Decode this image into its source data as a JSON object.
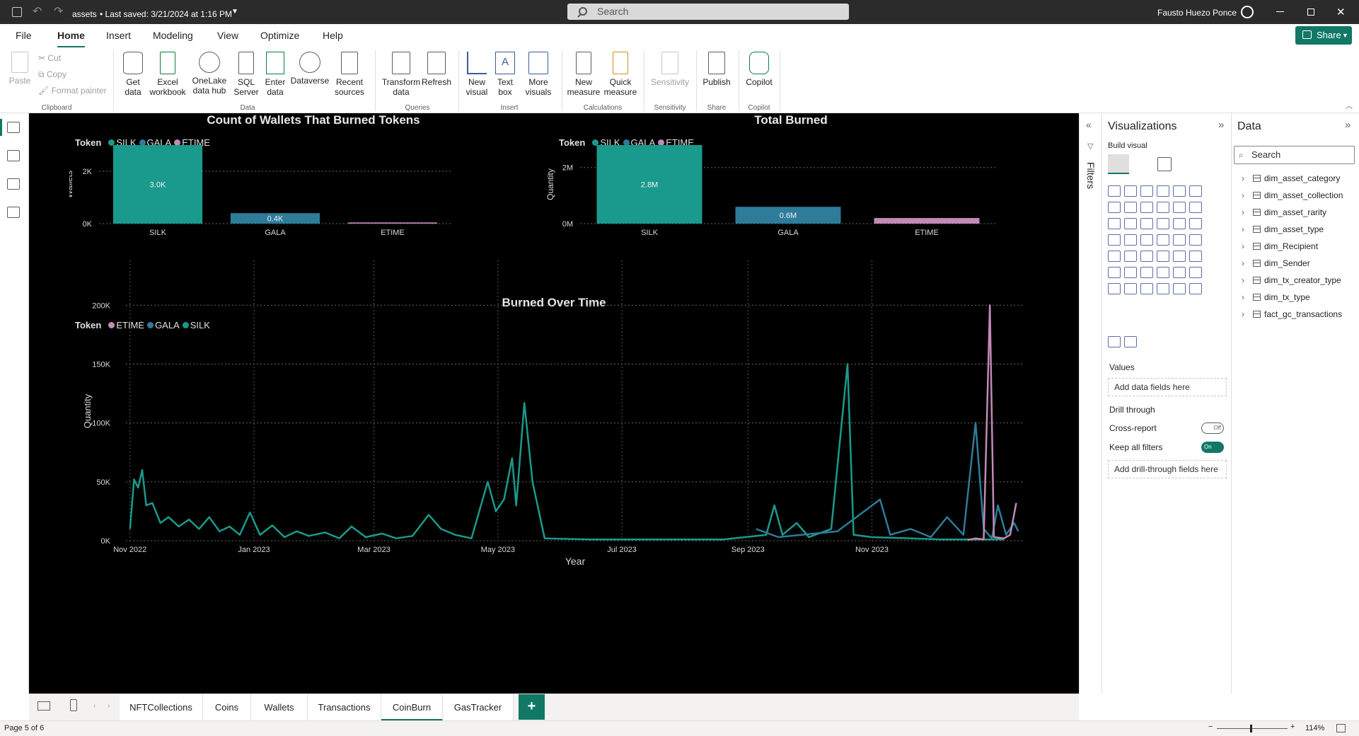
{
  "titlebar": {
    "file_name": "assets",
    "saved": "• Last saved: 3/21/2024 at 1:16 PM",
    "search_placeholder": "Search",
    "user": "Fausto Huezo Ponce"
  },
  "menu": [
    "File",
    "Home",
    "Insert",
    "Modeling",
    "View",
    "Optimize",
    "Help"
  ],
  "share_label": "Share",
  "ribbon": {
    "clipboard": {
      "paste": "Paste",
      "cut": "Cut",
      "copy": "Copy",
      "format_painter": "Format painter",
      "group": "Clipboard"
    },
    "data": {
      "get_data": "Get\ndata",
      "excel": "Excel\nworkbook",
      "onelake": "OneLake\ndata hub",
      "sql": "SQL\nServer",
      "enter": "Enter\ndata",
      "dataverse": "Dataverse",
      "recent": "Recent\nsources",
      "group": "Data"
    },
    "queries": {
      "transform": "Transform\ndata",
      "refresh": "Refresh",
      "group": "Queries"
    },
    "insert": {
      "new_visual": "New\nvisual",
      "text_box": "Text\nbox",
      "more_visuals": "More\nvisuals",
      "group": "Insert"
    },
    "calculations": {
      "new_measure": "New\nmeasure",
      "quick_measure": "Quick\nmeasure",
      "group": "Calculations"
    },
    "sensitivity": {
      "label": "Sensitivity",
      "group": "Sensitivity"
    },
    "share": {
      "publish": "Publish",
      "group": "Share"
    },
    "copilot": {
      "label": "Copilot",
      "group": "Copilot"
    }
  },
  "colors": {
    "silk": "#1a9a8c",
    "gala": "#2e7c9a",
    "etime": "#c28ab8",
    "accent": "#117865"
  },
  "charts": {
    "wallets": {
      "title": "Count of Wallets That Burned Tokens",
      "legend_title": "Token",
      "legend": [
        "SILK",
        "GALA",
        "ETIME"
      ],
      "ylabel": "Wallets",
      "yticks": [
        "2K",
        "0K"
      ],
      "data_labels": [
        "3.0K",
        "0.4K",
        ""
      ]
    },
    "burned": {
      "title": "Total Burned",
      "legend_title": "Token",
      "legend": [
        "SILK",
        "GALA",
        "ETIME"
      ],
      "ylabel": "Quantity",
      "yticks": [
        "2M",
        "0M"
      ],
      "data_labels": [
        "2.8M",
        "0.6M",
        ""
      ]
    },
    "overtime": {
      "title": "Burned Over Time",
      "legend_title": "Token",
      "legend": [
        "ETIME",
        "GALA",
        "SILK"
      ],
      "ylabel": "Quantity",
      "xlabel": "Year",
      "yticks": [
        "200K",
        "150K",
        "100K",
        "50K",
        "0K"
      ],
      "xticks": [
        "Nov 2022",
        "Jan 2023",
        "Mar 2023",
        "May 2023",
        "Jul 2023",
        "Sep 2023",
        "Nov 2023"
      ]
    }
  },
  "chart_data": [
    {
      "type": "bar",
      "title": "Count of Wallets That Burned Tokens",
      "ylabel": "Wallets",
      "categories": [
        "SILK",
        "GALA",
        "ETIME"
      ],
      "values": [
        3000,
        400,
        30
      ],
      "ylim": [
        0,
        3000
      ],
      "legend_placement": "top-left"
    },
    {
      "type": "bar",
      "title": "Total Burned",
      "ylabel": "Quantity",
      "categories": [
        "SILK",
        "GALA",
        "ETIME"
      ],
      "values": [
        2800000,
        600000,
        200000
      ],
      "ylim": [
        0,
        2800000
      ],
      "legend_placement": "top-left"
    },
    {
      "type": "line",
      "title": "Burned Over Time",
      "xlabel": "Year",
      "ylabel": "Quantity",
      "ylim": [
        0,
        220000
      ],
      "xlim": [
        "2022-10-30",
        "2024-01-15"
      ],
      "series": [
        {
          "name": "SILK",
          "points": [
            [
              "2022-11-01",
              10000
            ],
            [
              "2022-11-03",
              52000
            ],
            [
              "2022-11-05",
              45000
            ],
            [
              "2022-11-07",
              60000
            ],
            [
              "2022-11-09",
              30000
            ],
            [
              "2022-11-12",
              32000
            ],
            [
              "2022-11-16",
              15000
            ],
            [
              "2022-11-20",
              20000
            ],
            [
              "2022-11-25",
              12000
            ],
            [
              "2022-11-30",
              18000
            ],
            [
              "2022-12-05",
              10000
            ],
            [
              "2022-12-10",
              20000
            ],
            [
              "2022-12-15",
              8000
            ],
            [
              "2022-12-20",
              12000
            ],
            [
              "2022-12-25",
              5000
            ],
            [
              "2022-12-30",
              24000
            ],
            [
              "2023-01-04",
              5000
            ],
            [
              "2023-01-10",
              13000
            ],
            [
              "2023-01-16",
              3000
            ],
            [
              "2023-01-22",
              8000
            ],
            [
              "2023-01-28",
              4000
            ],
            [
              "2023-02-05",
              7000
            ],
            [
              "2023-02-12",
              2000
            ],
            [
              "2023-02-18",
              12000
            ],
            [
              "2023-02-25",
              3000
            ],
            [
              "2023-03-05",
              6000
            ],
            [
              "2023-03-12",
              2000
            ],
            [
              "2023-03-20",
              4000
            ],
            [
              "2023-03-28",
              22000
            ],
            [
              "2023-04-03",
              10000
            ],
            [
              "2023-04-10",
              5000
            ],
            [
              "2023-04-18",
              2000
            ],
            [
              "2023-04-26",
              50000
            ],
            [
              "2023-04-30",
              25000
            ],
            [
              "2023-05-04",
              35000
            ],
            [
              "2023-05-08",
              70000
            ],
            [
              "2023-05-10",
              30000
            ],
            [
              "2023-05-14",
              117000
            ],
            [
              "2023-05-18",
              50000
            ],
            [
              "2023-05-24",
              2000
            ],
            [
              "2023-06-15",
              1000
            ],
            [
              "2023-07-20",
              1000
            ],
            [
              "2023-08-20",
              1000
            ],
            [
              "2023-09-10",
              5000
            ],
            [
              "2023-09-14",
              30000
            ],
            [
              "2023-09-18",
              5000
            ],
            [
              "2023-09-25",
              15000
            ],
            [
              "2023-10-01",
              3000
            ],
            [
              "2023-10-12",
              10000
            ],
            [
              "2023-10-20",
              150000
            ],
            [
              "2023-10-23",
              5000
            ],
            [
              "2023-11-01",
              3000
            ],
            [
              "2023-11-20",
              2000
            ],
            [
              "2023-12-05",
              1000
            ],
            [
              "2024-01-05",
              1000
            ]
          ]
        },
        {
          "name": "GALA",
          "points": [
            [
              "2023-09-05",
              10000
            ],
            [
              "2023-09-16",
              3000
            ],
            [
              "2023-10-15",
              8000
            ],
            [
              "2023-11-05",
              35000
            ],
            [
              "2023-11-10",
              5000
            ],
            [
              "2023-11-20",
              10000
            ],
            [
              "2023-11-30",
              3000
            ],
            [
              "2023-12-08",
              20000
            ],
            [
              "2023-12-16",
              5000
            ],
            [
              "2023-12-22",
              100000
            ],
            [
              "2023-12-26",
              10000
            ],
            [
              "2023-12-30",
              2000
            ],
            [
              "2024-01-02",
              30000
            ],
            [
              "2024-01-06",
              5000
            ],
            [
              "2024-01-10",
              15000
            ],
            [
              "2024-01-12",
              8000
            ]
          ]
        },
        {
          "name": "ETIME",
          "points": [
            [
              "2023-12-18",
              500
            ],
            [
              "2023-12-22",
              2000
            ],
            [
              "2023-12-26",
              1000
            ],
            [
              "2023-12-29",
              200000
            ],
            [
              "2023-12-31",
              3000
            ],
            [
              "2024-01-05",
              2000
            ],
            [
              "2024-01-08",
              5000
            ],
            [
              "2024-01-11",
              32000
            ]
          ]
        }
      ]
    }
  ],
  "right_pane": {
    "filters": "Filters",
    "viz_title": "Visualizations",
    "build_visual": "Build visual",
    "values": "Values",
    "add_data": "Add data fields here",
    "drill_through": "Drill through",
    "cross_report": "Cross-report",
    "cross_report_state": "Off",
    "keep_filters": "Keep all filters",
    "keep_filters_state": "On",
    "add_drill": "Add drill-through fields here",
    "data_title": "Data",
    "data_search": "Search",
    "tables": [
      "dim_asset_category",
      "dim_asset_collection",
      "dim_asset_rarity",
      "dim_asset_type",
      "dim_Recipient",
      "dim_Sender",
      "dim_tx_creator_type",
      "dim_tx_type",
      "fact_gc_transactions"
    ]
  },
  "tabs": [
    "NFTCollections",
    "Coins",
    "Wallets",
    "Transactions",
    "CoinBurn",
    "GasTracker"
  ],
  "active_tab": "CoinBurn",
  "status": {
    "page": "Page 5 of 6",
    "zoom": "114%"
  }
}
